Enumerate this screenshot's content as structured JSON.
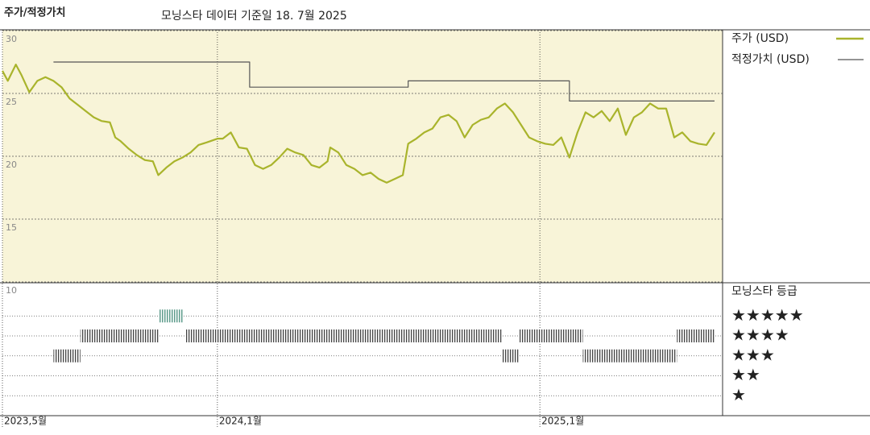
{
  "chart_data": {
    "type": "line",
    "title": "주가/적정가치",
    "subtitle": "모닝스타 데이터 기준일 18. 7월 2025",
    "xlim": [
      0,
      26.8
    ],
    "xticks": [
      {
        "value": 0,
        "label": "2023,5월"
      },
      {
        "value": 8,
        "label": "2024,1월"
      },
      {
        "value": 20,
        "label": "2025,1월"
      }
    ],
    "ylim": [
      10,
      30
    ],
    "yticks": [
      10,
      15,
      20,
      25,
      30
    ],
    "grid": true,
    "series": [
      {
        "name": "주가 (USD)",
        "color": "#a9b42c",
        "step": false,
        "x": [
          0.0,
          0.2,
          0.5,
          0.7,
          1.0,
          1.3,
          1.6,
          1.9,
          2.2,
          2.5,
          2.8,
          3.1,
          3.4,
          3.7,
          4.0,
          4.2,
          4.4,
          4.7,
          5.0,
          5.3,
          5.6,
          5.8,
          6.1,
          6.4,
          6.7,
          7.0,
          7.3,
          7.6,
          8.0,
          8.2,
          8.5,
          8.8,
          9.1,
          9.4,
          9.7,
          10.0,
          10.3,
          10.6,
          10.9,
          11.2,
          11.5,
          11.8,
          12.1,
          12.2,
          12.5,
          12.8,
          13.1,
          13.4,
          13.7,
          14.0,
          14.3,
          14.6,
          14.9,
          15.1,
          15.4,
          15.7,
          16.0,
          16.3,
          16.6,
          16.9,
          17.2,
          17.5,
          17.8,
          18.1,
          18.4,
          18.7,
          19.0,
          19.3,
          19.6,
          19.9,
          20.2,
          20.5,
          20.8,
          21.1,
          21.4,
          21.7,
          22.0,
          22.3,
          22.6,
          22.9,
          23.2,
          23.5,
          23.8,
          24.1,
          24.4,
          24.7,
          25.0,
          25.3,
          25.6,
          25.9,
          26.2,
          26.5
        ],
        "values": [
          26.8,
          26.0,
          27.3,
          26.5,
          25.1,
          26.0,
          26.3,
          26.0,
          25.5,
          24.6,
          24.1,
          23.6,
          23.1,
          22.8,
          22.7,
          21.5,
          21.2,
          20.6,
          20.1,
          19.7,
          19.6,
          18.5,
          19.1,
          19.6,
          19.9,
          20.3,
          20.9,
          21.1,
          21.4,
          21.4,
          21.9,
          20.7,
          20.6,
          19.3,
          19.0,
          19.3,
          19.9,
          20.6,
          20.3,
          20.1,
          19.3,
          19.1,
          19.6,
          20.7,
          20.3,
          19.3,
          19.0,
          18.5,
          18.7,
          18.2,
          17.9,
          18.2,
          18.5,
          21.0,
          21.4,
          21.9,
          22.2,
          23.1,
          23.3,
          22.8,
          21.5,
          22.5,
          22.9,
          23.1,
          23.8,
          24.2,
          23.5,
          22.5,
          21.5,
          21.2,
          21.0,
          20.9,
          21.5,
          19.9,
          21.9,
          23.5,
          23.1,
          23.6,
          22.8,
          23.8,
          21.7,
          23.1,
          23.5,
          24.2,
          23.8,
          23.8,
          21.5,
          21.9,
          21.2,
          21.0,
          20.9,
          21.9
        ]
      },
      {
        "name": "적정가치 (USD)",
        "color": "#555555",
        "step": true,
        "x": [
          1.9,
          9.2,
          15.1,
          21.1,
          26.5
        ],
        "values": [
          27.5,
          25.5,
          26.0,
          24.4,
          24.4
        ]
      }
    ],
    "rating_title": "모닝스타 등급",
    "rating_ticks": [
      {
        "value": 5,
        "label": "★★★★★"
      },
      {
        "value": 4,
        "label": "★★★★"
      },
      {
        "value": 3,
        "label": "★★★"
      },
      {
        "value": 2,
        "label": "★★"
      },
      {
        "value": 1,
        "label": "★"
      }
    ],
    "rating_colors": {
      "5": "#5f9c8c",
      "other": "#444444"
    },
    "rating_periods": [
      {
        "rating": 3,
        "start": 1.9,
        "end": 2.9
      },
      {
        "rating": 4,
        "start": 2.9,
        "end": 5.8
      },
      {
        "rating": 5,
        "start": 5.8,
        "end": 6.7
      },
      {
        "rating": 4,
        "start": 6.8,
        "end": 18.6
      },
      {
        "rating": 3,
        "start": 18.6,
        "end": 19.2
      },
      {
        "rating": 4,
        "start": 19.2,
        "end": 21.6
      },
      {
        "rating": 3,
        "start": 21.6,
        "end": 25.1
      },
      {
        "rating": 4,
        "start": 25.1,
        "end": 26.5
      }
    ]
  }
}
